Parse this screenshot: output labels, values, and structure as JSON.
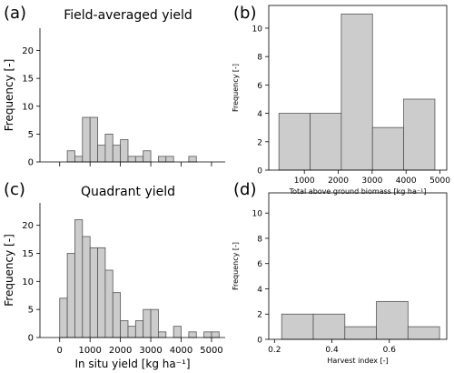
{
  "bar_fill": "#cccccc",
  "bar_edge": "#555555",
  "chart_data": [
    {
      "panel": "(a)",
      "type": "bar",
      "title": "Field-averaged yield",
      "xlabel": "",
      "ylabel": "Frequency [-]",
      "xlim": [
        -650,
        5450
      ],
      "ylim": [
        0,
        24
      ],
      "xticks": [
        0,
        1000,
        2000,
        3000,
        4000,
        5000
      ],
      "xtick_labels": [],
      "yticks": [
        0,
        5,
        10,
        15,
        20
      ],
      "bins": [
        {
          "x0": 250,
          "x1": 500,
          "value": 2
        },
        {
          "x0": 500,
          "x1": 750,
          "value": 1
        },
        {
          "x0": 750,
          "x1": 1000,
          "value": 8
        },
        {
          "x0": 1000,
          "x1": 1250,
          "value": 8
        },
        {
          "x0": 1250,
          "x1": 1500,
          "value": 3
        },
        {
          "x0": 1500,
          "x1": 1750,
          "value": 5
        },
        {
          "x0": 1750,
          "x1": 2000,
          "value": 3
        },
        {
          "x0": 2000,
          "x1": 2250,
          "value": 4
        },
        {
          "x0": 2250,
          "x1": 2500,
          "value": 1
        },
        {
          "x0": 2500,
          "x1": 2750,
          "value": 1
        },
        {
          "x0": 2750,
          "x1": 3000,
          "value": 2
        },
        {
          "x0": 3250,
          "x1": 3500,
          "value": 1
        },
        {
          "x0": 3500,
          "x1": 3750,
          "value": 1
        },
        {
          "x0": 4250,
          "x1": 4500,
          "value": 1
        }
      ]
    },
    {
      "panel": "(b)",
      "type": "bar",
      "title": "",
      "xlabel": "Total above ground biomass [kg  ha⁻¹]",
      "ylabel": "Frequency [-]",
      "xlim": [
        -50,
        5200
      ],
      "ylim": [
        0,
        11.6
      ],
      "xticks": [
        1000,
        2000,
        3000,
        4000,
        5000
      ],
      "xtick_labels": [
        "1000",
        "2000",
        "3000",
        "4000",
        "5000"
      ],
      "yticks": [
        0,
        2,
        4,
        6,
        8,
        10
      ],
      "bins": [
        {
          "x0": 250,
          "x1": 1170,
          "value": 4
        },
        {
          "x0": 1170,
          "x1": 2090,
          "value": 4
        },
        {
          "x0": 2090,
          "x1": 3010,
          "value": 11
        },
        {
          "x0": 3010,
          "x1": 3930,
          "value": 3
        },
        {
          "x0": 3930,
          "x1": 4850,
          "value": 5
        }
      ]
    },
    {
      "panel": "(c)",
      "type": "bar",
      "title": "Quadrant yield",
      "xlabel": "In situ yield [kg  ha⁻¹]",
      "ylabel": "Frequency [-]",
      "xlim": [
        -650,
        5450
      ],
      "ylim": [
        0,
        24
      ],
      "xticks": [
        0,
        1000,
        2000,
        3000,
        4000,
        5000
      ],
      "xtick_labels": [
        "0",
        "1000",
        "2000",
        "3000",
        "4000",
        "5000"
      ],
      "yticks": [
        0,
        5,
        10,
        15,
        20
      ],
      "bins": [
        {
          "x0": 0,
          "x1": 250,
          "value": 7
        },
        {
          "x0": 250,
          "x1": 500,
          "value": 15
        },
        {
          "x0": 500,
          "x1": 750,
          "value": 21
        },
        {
          "x0": 750,
          "x1": 1000,
          "value": 18
        },
        {
          "x0": 1000,
          "x1": 1250,
          "value": 16
        },
        {
          "x0": 1250,
          "x1": 1500,
          "value": 16
        },
        {
          "x0": 1500,
          "x1": 1750,
          "value": 12
        },
        {
          "x0": 1750,
          "x1": 2000,
          "value": 8
        },
        {
          "x0": 2000,
          "x1": 2250,
          "value": 3
        },
        {
          "x0": 2250,
          "x1": 2500,
          "value": 2
        },
        {
          "x0": 2500,
          "x1": 2750,
          "value": 3
        },
        {
          "x0": 2750,
          "x1": 3000,
          "value": 5
        },
        {
          "x0": 3000,
          "x1": 3250,
          "value": 5
        },
        {
          "x0": 3250,
          "x1": 3500,
          "value": 1
        },
        {
          "x0": 3750,
          "x1": 4000,
          "value": 2
        },
        {
          "x0": 4250,
          "x1": 4500,
          "value": 1
        },
        {
          "x0": 4750,
          "x1": 5000,
          "value": 1
        },
        {
          "x0": 5000,
          "x1": 5250,
          "value": 1
        }
      ]
    },
    {
      "panel": "(d)",
      "type": "bar",
      "title": "",
      "xlabel": "Harvest index [-]",
      "ylabel": "Frequency [-]",
      "xlim": [
        0.18,
        0.8
      ],
      "ylim": [
        0,
        11.6
      ],
      "xticks": [
        0.2,
        0.4,
        0.6
      ],
      "xtick_labels": [
        "0.2",
        "0.4",
        "0.6"
      ],
      "yticks": [
        0,
        2,
        4,
        6,
        8,
        10
      ],
      "bins": [
        {
          "x0": 0.225,
          "x1": 0.335,
          "value": 2
        },
        {
          "x0": 0.335,
          "x1": 0.445,
          "value": 2
        },
        {
          "x0": 0.445,
          "x1": 0.555,
          "value": 1
        },
        {
          "x0": 0.555,
          "x1": 0.665,
          "value": 3
        },
        {
          "x0": 0.665,
          "x1": 0.775,
          "value": 1
        }
      ]
    }
  ]
}
